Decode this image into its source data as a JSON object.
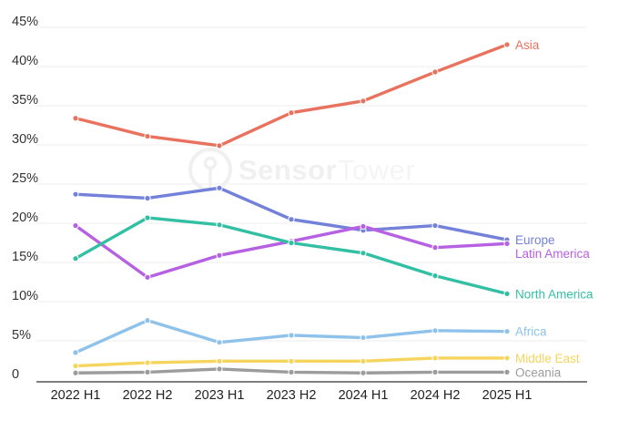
{
  "watermark": {
    "bold": "Sensor",
    "light": "Tower"
  },
  "chart_data": {
    "type": "line",
    "title": "",
    "xlabel": "",
    "ylabel": "",
    "categories": [
      "2022 H1",
      "2022 H2",
      "2023 H1",
      "2023 H2",
      "2024 H1",
      "2024 H2",
      "2025 H1"
    ],
    "series": [
      {
        "name": "Asia",
        "color": "#e8725e",
        "values": [
          33.4,
          31.1,
          29.9,
          34.1,
          35.6,
          39.3,
          42.8
        ]
      },
      {
        "name": "Europe",
        "color": "#7381d9",
        "values": [
          23.7,
          23.2,
          24.5,
          20.5,
          19.1,
          19.7,
          17.9
        ]
      },
      {
        "name": "Latin America",
        "color": "#b660e2",
        "values": [
          19.7,
          13.1,
          15.9,
          17.7,
          19.6,
          16.9,
          17.4
        ]
      },
      {
        "name": "North America",
        "color": "#33bfa4",
        "values": [
          15.5,
          20.7,
          19.8,
          17.5,
          16.2,
          13.3,
          11.0
        ]
      },
      {
        "name": "Africa",
        "color": "#8ec2ea",
        "values": [
          3.5,
          7.6,
          4.8,
          5.7,
          5.4,
          6.3,
          6.2
        ]
      },
      {
        "name": "Middle East",
        "color": "#f5d55e",
        "values": [
          1.8,
          2.2,
          2.4,
          2.4,
          2.4,
          2.8,
          2.8
        ]
      },
      {
        "name": "Oceania",
        "color": "#9c9c9c",
        "values": [
          0.9,
          1.0,
          1.4,
          1.0,
          0.9,
          1.0,
          1.0
        ]
      }
    ],
    "y_axis": {
      "min": 0,
      "max": 45,
      "ticks": [
        45,
        40,
        35,
        30,
        25,
        20,
        15,
        10,
        5,
        0
      ],
      "tick_labels": [
        "45%",
        "40%",
        "35%",
        "30%",
        "25%",
        "20%",
        "15%",
        "10%",
        "5%",
        "0"
      ]
    },
    "grid": true,
    "legend_position": "line-end-labels",
    "colors": {
      "gridline": "#ededed",
      "axis_line": "#555555",
      "tick_text": "#333333"
    }
  }
}
